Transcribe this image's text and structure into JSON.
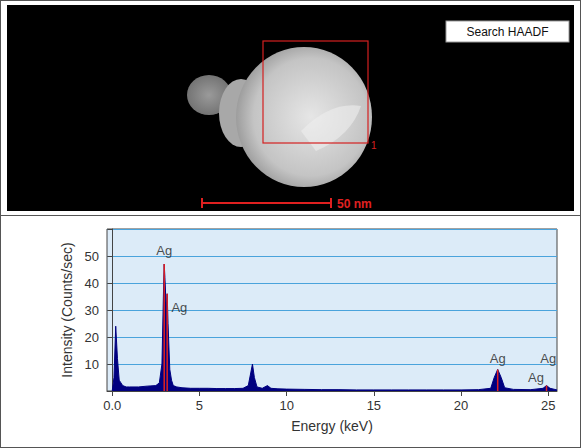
{
  "image_panel": {
    "mode_label": "Search HAADF",
    "region_label": "1",
    "scale_bar": "50 nm"
  },
  "chart_data": {
    "type": "area",
    "xlabel": "Energy (keV)",
    "ylabel": "Intensity (Counts/sec)",
    "color": "#000080",
    "x": [
      0.0,
      0.1,
      0.2,
      0.3,
      0.4,
      0.5,
      0.6,
      0.8,
      1.0,
      1.5,
      2.0,
      2.5,
      2.7,
      2.85,
      2.95,
      2.98,
      3.02,
      3.1,
      3.15,
      3.2,
      3.3,
      3.4,
      3.5,
      3.7,
      4.0,
      4.5,
      5.0,
      5.5,
      6.0,
      6.5,
      7.0,
      7.5,
      7.8,
      7.95,
      8.04,
      8.15,
      8.3,
      8.6,
      8.9,
      9.1,
      9.5,
      10.0,
      11.0,
      12.0,
      13.0,
      14.0,
      15.0,
      16.0,
      17.0,
      18.0,
      19.0,
      20.0,
      21.0,
      21.7,
      21.9,
      22.1,
      22.3,
      22.5,
      23.0,
      24.0,
      24.7,
      24.9,
      25.1,
      25.5
    ],
    "values": [
      0,
      5,
      24,
      12,
      4,
      3,
      2,
      1.5,
      1.5,
      1.5,
      1.8,
      2,
      3,
      10,
      40,
      47,
      42,
      30,
      36,
      25,
      8,
      4,
      2,
      1.5,
      1.2,
      1,
      1,
      1,
      0.9,
      0.9,
      0.9,
      1,
      2,
      7,
      10,
      5,
      1.5,
      1,
      2,
      1,
      0.8,
      0.7,
      0.6,
      0.5,
      0.5,
      0.4,
      0.4,
      0.4,
      0.4,
      0.4,
      0.4,
      0.4,
      0.5,
      1,
      5,
      8,
      5,
      1.2,
      0.6,
      0.5,
      1,
      2,
      1,
      0.4
    ],
    "peak_markers": [
      2.98,
      3.15,
      22.1,
      24.9
    ],
    "annotations": [
      {
        "text": "Ag",
        "x": 2.98,
        "y": 52
      },
      {
        "text": "Ag",
        "x": 3.85,
        "y": 31
      },
      {
        "text": "Ag",
        "x": 22.1,
        "y": 12
      },
      {
        "text": "Ag",
        "x": 24.3,
        "y": 5
      },
      {
        "text": "Ag",
        "x": 25.0,
        "y": 12
      }
    ],
    "xlim": [
      -0.3,
      25.5
    ],
    "xticks": [
      {
        "value": 0,
        "label": "0.0"
      },
      5,
      10,
      15,
      20,
      25
    ],
    "ylim": [
      0,
      60
    ],
    "yticks": [
      10,
      20,
      30,
      40,
      50
    ],
    "grid": true
  }
}
